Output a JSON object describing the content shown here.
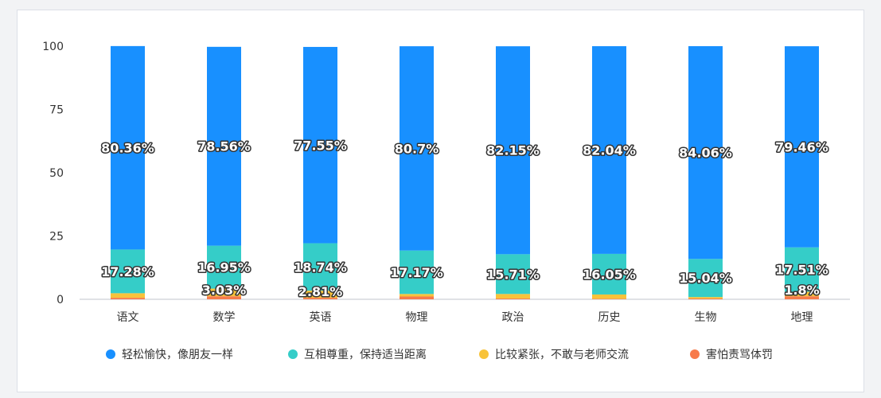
{
  "chart_data": {
    "type": "bar",
    "stacked": true,
    "categories": [
      "语文",
      "数学",
      "英语",
      "物理",
      "政治",
      "历史",
      "生物",
      "地理"
    ],
    "ylim": [
      0,
      100
    ],
    "yticks": [
      0,
      25,
      50,
      75,
      100
    ],
    "grid": false,
    "legend_position": "bottom",
    "series": [
      {
        "name": "害怕责骂体罚",
        "color": "#f77b4b",
        "values": [
          0.6,
          1.2,
          0.6,
          1.1,
          0.3,
          0.2,
          0.3,
          1.2
        ],
        "labels": [
          "",
          "",
          "",
          "",
          "",
          "",
          "",
          ""
        ]
      },
      {
        "name": "比较紧张，不敢与老师交流",
        "color": "#f8c33a",
        "values": [
          1.8,
          3.03,
          2.81,
          1.0,
          1.8,
          1.7,
          0.6,
          1.8
        ],
        "labels": [
          "",
          "3.03%",
          "2.81%",
          "",
          "",
          "",
          "",
          "1.8%"
        ]
      },
      {
        "name": "互相尊重，保持适当距离",
        "color": "#35cdc8",
        "values": [
          17.28,
          16.95,
          18.74,
          17.17,
          15.71,
          16.05,
          15.04,
          17.51
        ],
        "labels": [
          "17.28%",
          "16.95%",
          "18.74%",
          "17.17%",
          "15.71%",
          "16.05%",
          "15.04%",
          "17.51%"
        ]
      },
      {
        "name": "轻松愉快，像朋友一样",
        "color": "#1890ff",
        "values": [
          80.36,
          78.56,
          77.55,
          80.7,
          82.15,
          82.04,
          84.06,
          79.46
        ],
        "labels": [
          "80.36%",
          "78.56%",
          "77.55%",
          "80.7%",
          "82.15%",
          "82.04%",
          "84.06%",
          "79.46%"
        ]
      }
    ],
    "legend_order": [
      "轻松愉快，像朋友一样",
      "互相尊重，保持适当距离",
      "比较紧张，不敢与老师交流",
      "害怕责骂体罚"
    ]
  }
}
